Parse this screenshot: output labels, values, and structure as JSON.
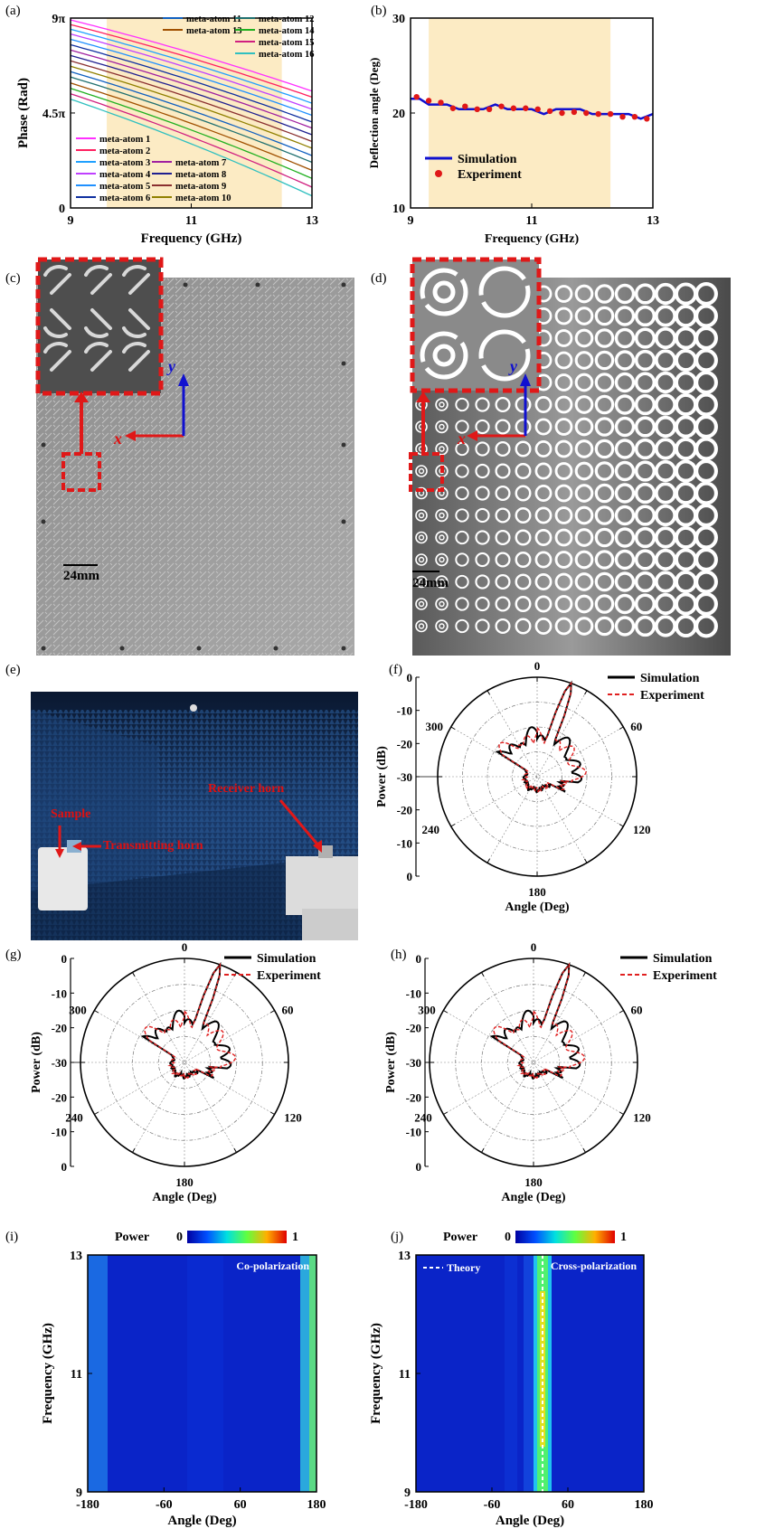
{
  "panel_labels": [
    "(a)",
    "(b)",
    "(c)",
    "(d)",
    "(e)",
    "(f)",
    "(g)",
    "(h)",
    "(i)",
    "(j)"
  ],
  "colors": {
    "highlight": "#fcebc4",
    "red": "#e01818",
    "blue": "#1010d0",
    "dashred": "#e02020"
  },
  "photos": {
    "c": {
      "scale_label": "24mm",
      "x_axis": "x",
      "y_axis": "y"
    },
    "d": {
      "scale_label": "24mm",
      "x_axis": "x",
      "y_axis": "y"
    },
    "e": {
      "sample": "Sample",
      "transmitting": "Transmitting horn",
      "receiver": "Receiver horn"
    }
  },
  "chart_data": [
    {
      "id": "a",
      "type": "line",
      "xlabel": "Frequency (GHz)",
      "ylabel": "Phase (Rad)",
      "xlim": [
        9,
        13
      ],
      "ylim": [
        0,
        28.27
      ],
      "x_ticks": [
        "9",
        "11",
        "13"
      ],
      "y_ticks": [
        "0",
        "4.5π",
        "9π"
      ],
      "highlight_x": [
        9.6,
        12.5
      ],
      "series": [
        {
          "name": "meta-atom 1",
          "color": "#ff30ff",
          "start": 28.0,
          "end": 17.4
        },
        {
          "name": "meta-atom 2",
          "color": "#ff2060",
          "start": 27.3,
          "end": 16.5
        },
        {
          "name": "meta-atom 3",
          "color": "#20a0ff",
          "start": 26.6,
          "end": 15.6
        },
        {
          "name": "meta-atom 4",
          "color": "#c040ff",
          "start": 25.9,
          "end": 14.7
        },
        {
          "name": "meta-atom 5",
          "color": "#2090ff",
          "start": 25.1,
          "end": 13.8
        },
        {
          "name": "meta-atom 6",
          "color": "#1030a0",
          "start": 24.3,
          "end": 12.8
        },
        {
          "name": "meta-atom 7",
          "color": "#a020a0",
          "start": 23.5,
          "end": 11.9
        },
        {
          "name": "meta-atom 8",
          "color": "#202090",
          "start": 22.7,
          "end": 10.9
        },
        {
          "name": "meta-atom 9",
          "color": "#8a3030",
          "start": 21.9,
          "end": 9.9
        },
        {
          "name": "meta-atom 10",
          "color": "#908000",
          "start": 21.1,
          "end": 8.9
        },
        {
          "name": "meta-atom 11",
          "color": "#1060c0",
          "start": 20.3,
          "end": 7.8
        },
        {
          "name": "meta-atom 12",
          "color": "#207070",
          "start": 19.5,
          "end": 6.8
        },
        {
          "name": "meta-atom 13",
          "color": "#a05000",
          "start": 18.6,
          "end": 5.6
        },
        {
          "name": "meta-atom 14",
          "color": "#20b020",
          "start": 17.8,
          "end": 4.4
        },
        {
          "name": "meta-atom 15",
          "color": "#d02080",
          "start": 17.0,
          "end": 3.1
        },
        {
          "name": "meta-atom 16",
          "color": "#30c0c0",
          "start": 16.2,
          "end": 1.8
        }
      ]
    },
    {
      "id": "b",
      "type": "line",
      "xlabel": "Frequency (GHz)",
      "ylabel": "Deflection angle (Deg)",
      "xlim": [
        9,
        13
      ],
      "ylim": [
        10,
        30
      ],
      "x_ticks": [
        "9",
        "11",
        "13"
      ],
      "y_ticks": [
        "10",
        "20",
        "30"
      ],
      "highlight_x": [
        9.3,
        12.3
      ],
      "series": [
        {
          "name": "Simulation",
          "style": "line",
          "color": "#1010d0",
          "x": [
            9.0,
            9.15,
            9.3,
            9.45,
            9.6,
            9.8,
            10.0,
            10.2,
            10.4,
            10.6,
            10.8,
            11.0,
            11.2,
            11.4,
            11.6,
            11.8,
            12.0,
            12.2,
            12.4,
            12.6,
            12.8,
            13.0
          ],
          "y": [
            21.5,
            21.5,
            20.9,
            20.9,
            20.9,
            20.4,
            20.4,
            20.4,
            20.9,
            20.4,
            20.4,
            20.4,
            19.9,
            20.4,
            20.4,
            20.4,
            19.9,
            19.9,
            19.9,
            19.9,
            19.4,
            19.9
          ]
        },
        {
          "name": "Experiment",
          "style": "marker",
          "color": "#e01818",
          "x": [
            9.1,
            9.3,
            9.5,
            9.7,
            9.9,
            10.1,
            10.3,
            10.5,
            10.7,
            10.9,
            11.1,
            11.3,
            11.5,
            11.7,
            11.9,
            12.1,
            12.3,
            12.5,
            12.7,
            12.9
          ],
          "y": [
            21.7,
            21.3,
            21.1,
            20.5,
            20.7,
            20.4,
            20.4,
            20.7,
            20.5,
            20.5,
            20.4,
            20.2,
            20.0,
            20.1,
            20.0,
            19.9,
            19.9,
            19.6,
            19.6,
            19.4
          ]
        }
      ]
    },
    {
      "id": "f",
      "type": "polar",
      "xlabel": "Angle (Deg)",
      "ylabel": "Power (dB)",
      "angle_ticks": [
        "0",
        "60",
        "120",
        "180",
        "240",
        "300"
      ],
      "r_ticks_upper": [
        "0",
        "-10",
        "-20",
        "-30"
      ],
      "r_ticks_lower": [
        "-20",
        "-10",
        "0"
      ],
      "main_lobe": 20,
      "series": [
        {
          "name": "Simulation",
          "color": "#000000"
        },
        {
          "name": "Experiment",
          "color": "#e02020"
        }
      ]
    },
    {
      "id": "g",
      "type": "polar",
      "xlabel": "Angle (Deg)",
      "ylabel": "Power (dB)",
      "angle_ticks": [
        "0",
        "60",
        "120",
        "180",
        "240",
        "300"
      ],
      "r_ticks_upper": [
        "0",
        "-10",
        "-20",
        "-30"
      ],
      "r_ticks_lower": [
        "-20",
        "-10",
        "0"
      ],
      "main_lobe": 20,
      "series": [
        {
          "name": "Simulation",
          "color": "#000000"
        },
        {
          "name": "Experiment",
          "color": "#e02020"
        }
      ]
    },
    {
      "id": "h",
      "type": "polar",
      "xlabel": "Angle (Deg)",
      "ylabel": "Power (dB)",
      "angle_ticks": [
        "0",
        "60",
        "120",
        "180",
        "240",
        "300"
      ],
      "r_ticks_upper": [
        "0",
        "-10",
        "-20",
        "-30"
      ],
      "r_ticks_lower": [
        "-20",
        "-10",
        "0"
      ],
      "main_lobe": 20,
      "series": [
        {
          "name": "Simulation",
          "color": "#000000"
        },
        {
          "name": "Experiment",
          "color": "#e02020"
        }
      ]
    },
    {
      "id": "i",
      "type": "heatmap",
      "xlabel": "Angle (Deg)",
      "ylabel": "Frequency (GHz)",
      "xlim": [
        -180,
        180
      ],
      "ylim": [
        9,
        13
      ],
      "x_ticks": [
        "-180",
        "-60",
        "60",
        "180"
      ],
      "y_ticks": [
        "9",
        "11",
        "13"
      ],
      "colorbar": {
        "title": "Power",
        "min": "0",
        "max": "1"
      },
      "annotation": "Co-polarization"
    },
    {
      "id": "j",
      "type": "heatmap",
      "xlabel": "Angle (Deg)",
      "ylabel": "Frequency (GHz)",
      "xlim": [
        -180,
        180
      ],
      "ylim": [
        9,
        13
      ],
      "x_ticks": [
        "-180",
        "-60",
        "60",
        "180"
      ],
      "y_ticks": [
        "9",
        "11",
        "13"
      ],
      "colorbar": {
        "title": "Power",
        "min": "0",
        "max": "1"
      },
      "annotation": "Cross-polarization",
      "legend": "Theory",
      "theory_angle": 20
    }
  ]
}
